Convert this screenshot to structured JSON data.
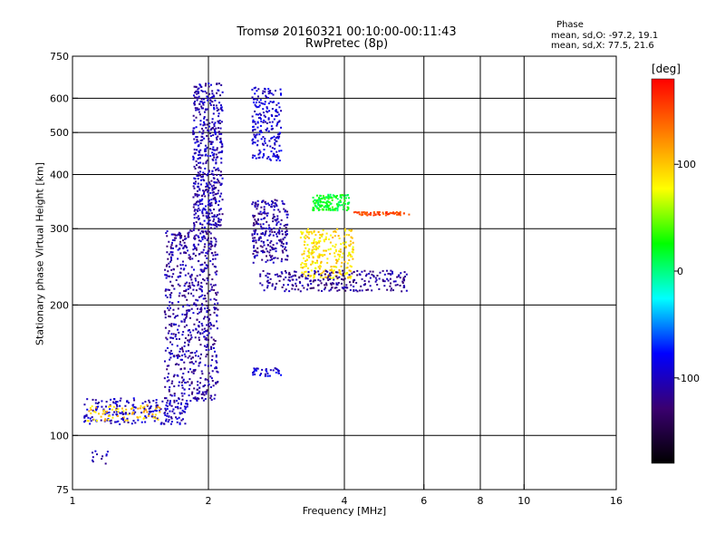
{
  "header": {
    "title_line1": "Tromsø 20160321 00:10:00-00:11:43",
    "title_line2": "RwPretec (8p)"
  },
  "phase_info": {
    "title": "Phase",
    "o_stats": "mean, sd,O: -97.2, 19.1",
    "x_stats": "mean, sd,X:  77.5, 21.6"
  },
  "colorbar": {
    "label": "[deg]",
    "ticks": [
      "100",
      "0",
      "-100"
    ],
    "tick_values": [
      100,
      0,
      -100
    ],
    "range": [
      -180,
      180
    ],
    "colors": [
      "#000000",
      "#3a0070",
      "#0000ff",
      "#00ffff",
      "#00ff00",
      "#ffff00",
      "#ff7f00",
      "#ff0000"
    ]
  },
  "chart_data": {
    "type": "scatter",
    "title": "Tromsø 20160321 00:10:00-00:11:43",
    "subtitle": "RwPretec (8p)",
    "xlabel": "Frequency [MHz]",
    "ylabel": "Stationary phase Virtual Height [km]",
    "x_scale": "log",
    "y_scale": "log",
    "xlim": [
      1,
      16
    ],
    "ylim": [
      75,
      750
    ],
    "x_ticks": [
      1,
      2,
      4,
      6,
      8,
      10,
      16
    ],
    "x_tick_labels": [
      "1",
      "2",
      "4",
      "6",
      "8",
      "10",
      "16"
    ],
    "y_ticks": [
      75,
      100,
      200,
      300,
      400,
      500,
      600,
      750
    ],
    "y_tick_labels": [
      "75",
      "100",
      "200",
      "300",
      "400",
      "500",
      "600",
      "750"
    ],
    "grid_x": [
      2,
      4,
      6,
      8,
      10
    ],
    "grid_y": [
      100,
      200,
      300,
      400,
      500,
      600
    ],
    "clusters": [
      {
        "region": "low E trace",
        "x": [
          1.06,
          1.8
        ],
        "y": [
          106,
          122
        ],
        "phase": -100,
        "n": 220
      },
      {
        "region": "low E trace (O/X mix)",
        "x": [
          1.08,
          1.6
        ],
        "y": [
          108,
          118
        ],
        "phase": 100,
        "n": 70
      },
      {
        "region": "bottom points",
        "x": [
          1.1,
          1.2
        ],
        "y": [
          86,
          92
        ],
        "phase": -100,
        "n": 12
      },
      {
        "region": "F1 rise",
        "x": [
          1.6,
          2.1
        ],
        "y": [
          120,
          300
        ],
        "phase": -110,
        "n": 700
      },
      {
        "region": "F2 spread",
        "x": [
          1.85,
          2.15
        ],
        "y": [
          300,
          650
        ],
        "phase": -105,
        "n": 500
      },
      {
        "region": "upper branch",
        "x": [
          2.5,
          2.9
        ],
        "y": [
          430,
          640
        ],
        "phase": -95,
        "n": 200
      },
      {
        "region": "descending trace",
        "x": [
          2.5,
          3.0
        ],
        "y": [
          250,
          350
        ],
        "phase": -110,
        "n": 250
      },
      {
        "region": "E-layer blob",
        "x": [
          2.5,
          2.9
        ],
        "y": [
          137,
          143
        ],
        "phase": -90,
        "n": 35
      },
      {
        "region": "X-mode trace",
        "x": [
          3.2,
          4.2
        ],
        "y": [
          230,
          300
        ],
        "phase": 90,
        "n": 260
      },
      {
        "region": "X cyan cluster",
        "x": [
          3.4,
          4.1
        ],
        "y": [
          330,
          360
        ],
        "phase": 20,
        "n": 150
      },
      {
        "region": "orange trace",
        "x": [
          4.2,
          5.6
        ],
        "y": [
          322,
          328
        ],
        "phase": 150,
        "n": 70
      },
      {
        "region": "bottom arc",
        "x": [
          2.6,
          5.5
        ],
        "y": [
          215,
          240
        ],
        "phase": -115,
        "n": 260
      }
    ]
  }
}
